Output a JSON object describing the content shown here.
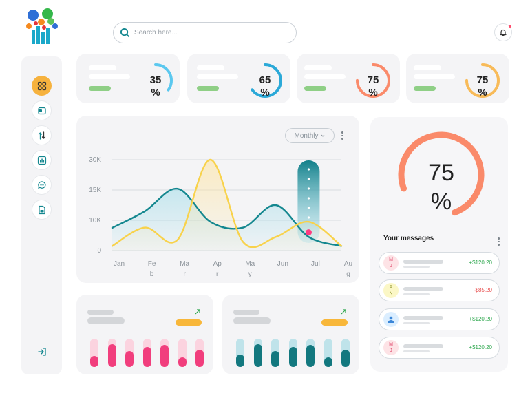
{
  "header": {
    "search_placeholder": "Search here..."
  },
  "sidebar": {
    "items": [
      {
        "icon": "grid-icon",
        "active": true
      },
      {
        "icon": "wallet-icon",
        "active": false
      },
      {
        "icon": "transfer-icon",
        "active": false
      },
      {
        "icon": "bar-chart-icon",
        "active": false
      },
      {
        "icon": "chat-icon",
        "active": false
      },
      {
        "icon": "document-icon",
        "active": false
      }
    ],
    "logout_icon": "logout-icon"
  },
  "stat_cards": [
    {
      "percent": 35,
      "value": "35",
      "unit": "%",
      "color": "#5bc8ef"
    },
    {
      "percent": 65,
      "value": "65",
      "unit": "%",
      "color": "#2ba9d8"
    },
    {
      "percent": 75,
      "value": "75",
      "unit": "%",
      "color": "#fa8a6a"
    },
    {
      "percent": 75,
      "value": "75",
      "unit": "%",
      "color": "#f8bb59"
    }
  ],
  "chart": {
    "filter_label": "Monthly",
    "y_ticks": [
      "30K",
      "15K",
      "10K",
      "0"
    ],
    "x_ticks": [
      [
        "Jan"
      ],
      [
        "Fe",
        "b"
      ],
      [
        "Ma",
        "r"
      ],
      [
        "Ap",
        "r"
      ],
      [
        "Ma",
        "y"
      ],
      [
        "Jun"
      ],
      [
        "Jul"
      ],
      [
        "Au",
        "g"
      ]
    ]
  },
  "chart_data": {
    "type": "line",
    "x": [
      "Jan",
      "Feb",
      "Mar",
      "Apr",
      "May",
      "Jun",
      "Jul",
      "Aug"
    ],
    "y_ticks": [
      "30K",
      "15K",
      "10K",
      "0"
    ],
    "series": [
      {
        "color": "#14878f",
        "values": [
          7.5,
          11.5,
          15.6,
          9.5,
          7.6,
          12.5,
          4.5,
          1.5
        ]
      },
      {
        "color": "#f8d24b",
        "values": [
          1.5,
          7.6,
          3.6,
          30,
          2.8,
          4.5,
          9.5,
          1.5
        ]
      }
    ],
    "highlight": {
      "x": "Jul",
      "color": "#ff3c80"
    }
  },
  "big_gauge": {
    "percent": 75,
    "value": "75",
    "unit": "%",
    "color": "#fa8a6a"
  },
  "messages": {
    "title": "Your messages",
    "items": [
      {
        "initials": [
          "M",
          "J"
        ],
        "amount": "+$120.20",
        "amount_color": "#2fa84f",
        "avatar_bg": "#fde3e6",
        "avatar_color": "#e0476b"
      },
      {
        "initials": [
          "A",
          "N"
        ],
        "amount": "-$85.20",
        "amount_color": "#e84a4a",
        "avatar_bg": "#fbf7c6",
        "avatar_color": "#8a8f21"
      },
      {
        "initials": [
          "",
          ""
        ],
        "amount": "+$120.20",
        "amount_color": "#2fa84f",
        "avatar_bg": "#dbeeff",
        "avatar_color": "#3a86d8"
      },
      {
        "initials": [
          "M",
          "J"
        ],
        "amount": "+$120.20",
        "amount_color": "#2fa84f",
        "avatar_bg": "#fde3e6",
        "avatar_color": "#e0476b"
      }
    ]
  },
  "mini_cards": [
    {
      "color": "#f13e7d",
      "track": "#fbd3df",
      "levels": [
        0.4,
        0.8,
        0.55,
        0.7,
        0.78,
        0.35,
        0.6
      ]
    },
    {
      "color": "#13787f",
      "track": "#bfe3ea",
      "levels": [
        0.45,
        0.8,
        0.55,
        0.7,
        0.78,
        0.35,
        0.6
      ]
    }
  ]
}
